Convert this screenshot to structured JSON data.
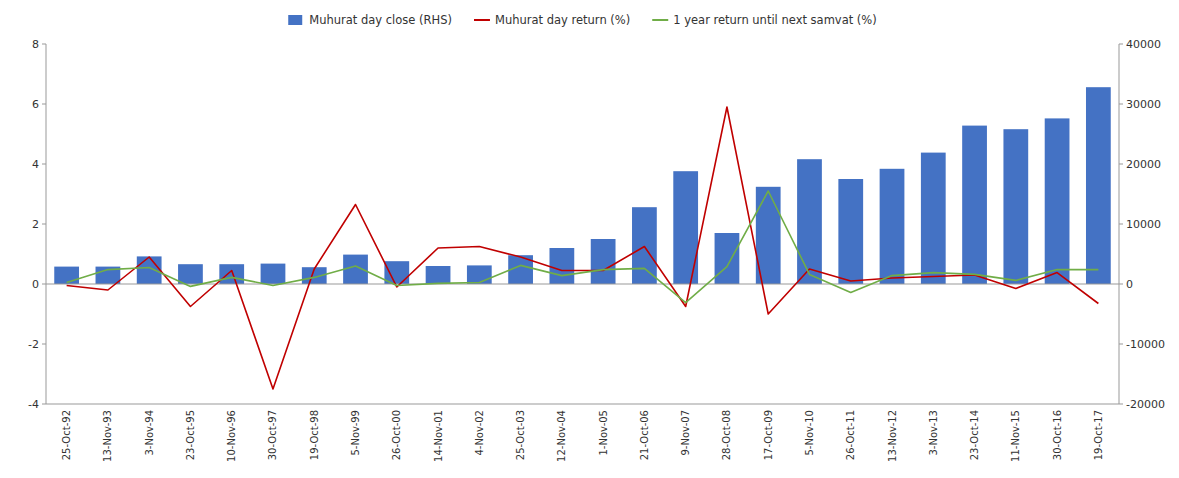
{
  "chart_data": {
    "type": "bar",
    "categories": [
      "25-Oct-92",
      "13-Nov-93",
      "3-Nov-94",
      "23-Oct-95",
      "10-Nov-96",
      "30-Oct-97",
      "19-Oct-98",
      "5-Nov-99",
      "26-Oct-00",
      "14-Nov-01",
      "4-Nov-02",
      "25-Oct-03",
      "12-Nov-04",
      "1-Nov-05",
      "21-Oct-06",
      "9-Nov-07",
      "28-Oct-08",
      "17-Oct-09",
      "5-Nov-10",
      "26-Oct-11",
      "13-Nov-12",
      "3-Nov-13",
      "23-Oct-14",
      "11-Nov-15",
      "30-Oct-16",
      "19-Oct-17"
    ],
    "series": [
      {
        "name": "Muhurat day close (RHS)",
        "type": "bar",
        "axis": "y2",
        "color": "#4472C4",
        "values": [
          2900,
          2900,
          4600,
          3300,
          3300,
          3400,
          2800,
          4900,
          3800,
          3000,
          3100,
          4800,
          6000,
          7500,
          12800,
          18800,
          8500,
          16200,
          20800,
          17500,
          19200,
          21900,
          26400,
          25800,
          27600,
          32800
        ]
      },
      {
        "name": "Muhurat day return (%)",
        "type": "line",
        "color": "#C00000",
        "values": [
          -0.05,
          -0.2,
          0.9,
          -0.75,
          0.45,
          -3.5,
          0.5,
          2.65,
          -0.1,
          1.2,
          1.25,
          0.9,
          0.45,
          0.45,
          1.25,
          -0.75,
          5.9,
          -1.0,
          0.5,
          0.1,
          0.2,
          0.25,
          0.3,
          -0.15,
          0.38,
          -0.65
        ]
      },
      {
        "name": "1 year return until next samvat (%)",
        "type": "line",
        "color": "#70AD47",
        "values": [
          0.05,
          0.48,
          0.55,
          -0.08,
          0.22,
          -0.05,
          0.22,
          0.6,
          -0.05,
          0.02,
          0.05,
          0.62,
          0.28,
          0.48,
          0.52,
          -0.62,
          0.58,
          3.1,
          0.32,
          -0.28,
          0.28,
          0.38,
          0.32,
          0.12,
          0.48,
          0.48
        ]
      }
    ],
    "ylim": [
      -4,
      8
    ],
    "yticks": [
      -4,
      -2,
      0,
      2,
      4,
      6,
      8
    ],
    "y2lim": [
      -20000,
      40000
    ],
    "y2ticks": [
      -20000,
      -10000,
      0,
      10000,
      20000,
      30000,
      40000
    ],
    "grid": false,
    "legend": "top"
  }
}
